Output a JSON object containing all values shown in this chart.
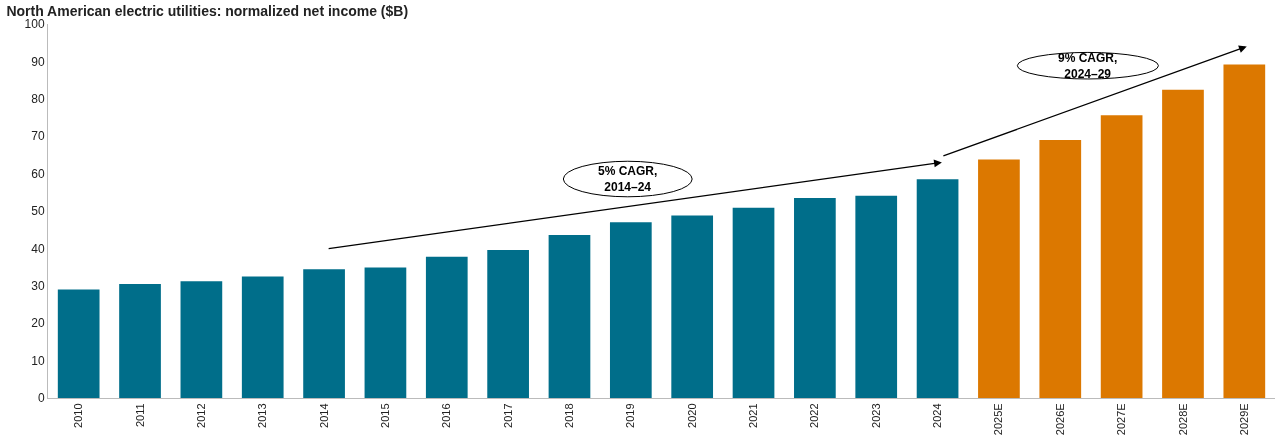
{
  "chart_data": {
    "type": "bar",
    "title": "North American electric utilities: normalized net income ($B)",
    "categories": [
      "2010",
      "2011",
      "2012",
      "2013",
      "2014",
      "2015",
      "2016",
      "2017",
      "2018",
      "2019",
      "2020",
      "2021",
      "2022",
      "2023",
      "2024",
      "2025E",
      "2026E",
      "2027E",
      "2028E",
      "2029E"
    ],
    "values": [
      29,
      30.5,
      31.2,
      32.5,
      34.4,
      34.9,
      37.8,
      39.6,
      43.6,
      47,
      48.8,
      50.9,
      53.5,
      54.1,
      58.5,
      63.8,
      69,
      75.6,
      82.4,
      89.2
    ],
    "colors": [
      "#006e8a",
      "#006e8a",
      "#006e8a",
      "#006e8a",
      "#006e8a",
      "#006e8a",
      "#006e8a",
      "#006e8a",
      "#006e8a",
      "#006e8a",
      "#006e8a",
      "#006e8a",
      "#006e8a",
      "#006e8a",
      "#006e8a",
      "#dc7800",
      "#dc7800",
      "#dc7800",
      "#dc7800",
      "#dc7800"
    ],
    "ylim": [
      0,
      100
    ],
    "yticks": [
      0,
      10,
      20,
      30,
      40,
      50,
      60,
      70,
      80,
      90,
      100
    ],
    "grid": false,
    "annotations": [
      "5% CAGR,\n2014–24",
      "9% CAGR,\n2024–29"
    ]
  }
}
